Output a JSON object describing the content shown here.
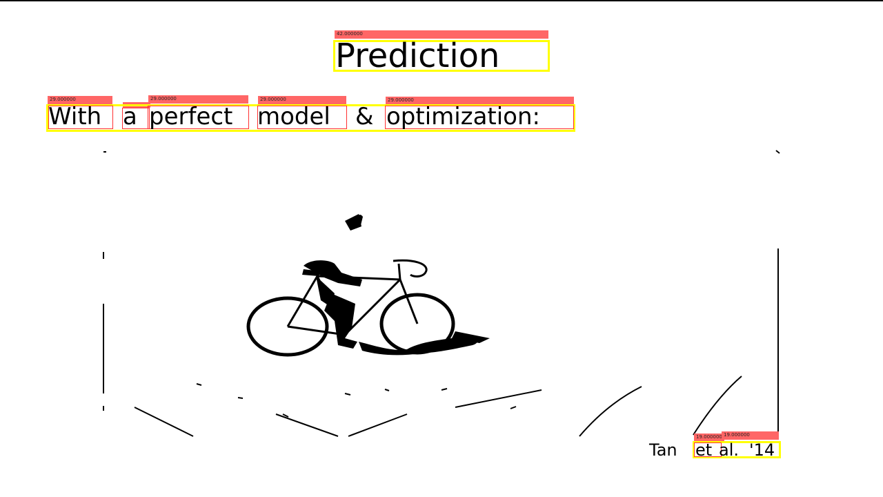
{
  "slide": {
    "title": "Prediction",
    "subtitle_words": [
      "With",
      "a",
      "perfect",
      "model",
      "&",
      "optimization:"
    ],
    "citation_words": [
      "Tan",
      "et",
      "al.",
      "'14"
    ]
  },
  "annotations": {
    "title_score": "42.000000",
    "subtitle_scores": [
      "29.000000",
      "29.000000",
      "29.000000",
      "29.000000",
      "29.000000"
    ],
    "citation_scores": [
      "19.000000",
      "19.000000"
    ]
  },
  "colors": {
    "label_bar": "#ff6666",
    "box_outline": "#ffff00",
    "word_outline": "#ff3030",
    "text": "#000000",
    "background": "#ffffff"
  },
  "figure": {
    "icon": "cyclist-silhouette-icon"
  }
}
